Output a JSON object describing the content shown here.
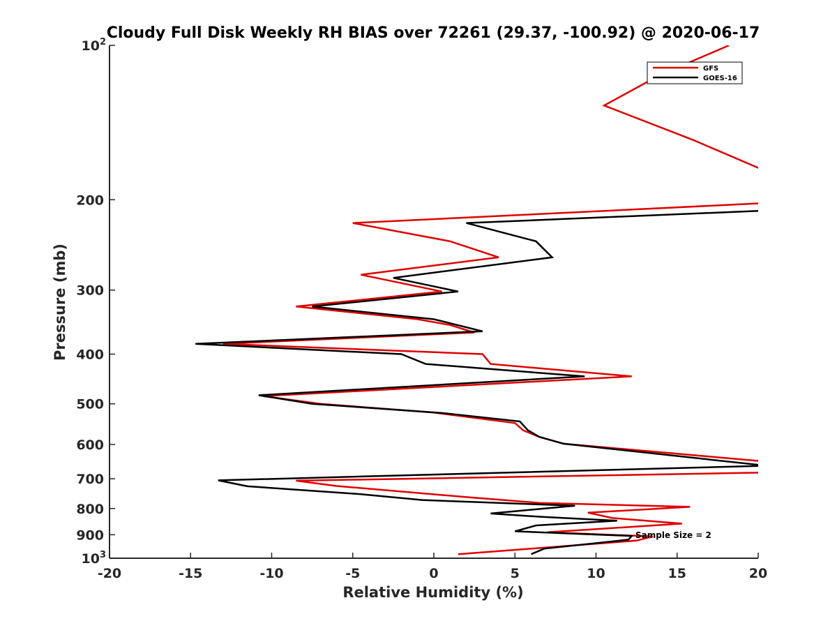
{
  "chart_data": {
    "type": "line",
    "title": "Cloudy Full Disk Weekly RH BIAS over 72261 (29.37, -100.92) @ 2020-06-17",
    "xlabel": "Relative Humidity (%)",
    "ylabel": "Pressure (mb)",
    "xlim": [
      -20,
      20
    ],
    "ylim": [
      100,
      1000
    ],
    "y_scale": "log",
    "y_reversed": true,
    "grid": false,
    "legend_position": "top-right",
    "x_ticks": [
      {
        "value": -20,
        "label": "-20"
      },
      {
        "value": -15,
        "label": "-15"
      },
      {
        "value": -10,
        "label": "-10"
      },
      {
        "value": -5,
        "label": "-5"
      },
      {
        "value": 0,
        "label": "0"
      },
      {
        "value": 5,
        "label": "5"
      },
      {
        "value": 10,
        "label": "10"
      },
      {
        "value": 15,
        "label": "15"
      },
      {
        "value": 20,
        "label": "20"
      }
    ],
    "y_ticks": [
      {
        "value": 100,
        "base": "10",
        "exp": "2"
      },
      {
        "value": 200,
        "base": "200",
        "exp": ""
      },
      {
        "value": 300,
        "base": "300",
        "exp": ""
      },
      {
        "value": 400,
        "base": "400",
        "exp": ""
      },
      {
        "value": 500,
        "base": "500",
        "exp": ""
      },
      {
        "value": 600,
        "base": "600",
        "exp": ""
      },
      {
        "value": 700,
        "base": "700",
        "exp": ""
      },
      {
        "value": 800,
        "base": "800",
        "exp": ""
      },
      {
        "value": 900,
        "base": "900",
        "exp": ""
      },
      {
        "value": 1000,
        "base": "10",
        "exp": "3"
      }
    ],
    "series": [
      {
        "name": "GFS",
        "color": "#e00000",
        "points": [
          [
            18.2,
            100
          ],
          [
            14.0,
            114
          ],
          [
            10.5,
            131
          ],
          [
            16.0,
            153
          ],
          [
            20.5,
            176
          ],
          [
            20.5,
            203
          ],
          [
            -5.0,
            222
          ],
          [
            1.0,
            241
          ],
          [
            4.0,
            259
          ],
          [
            -4.5,
            280
          ],
          [
            0.5,
            302
          ],
          [
            -8.5,
            323
          ],
          [
            -1.0,
            342
          ],
          [
            1.0,
            351
          ],
          [
            2.5,
            363
          ],
          [
            -13.0,
            382
          ],
          [
            3.0,
            400
          ],
          [
            3.5,
            418
          ],
          [
            12.2,
            442
          ],
          [
            -10.5,
            483
          ],
          [
            -7.0,
            500
          ],
          [
            0.0,
            520
          ],
          [
            5.0,
            545
          ],
          [
            5.5,
            563
          ],
          [
            6.5,
            580
          ],
          [
            8.0,
            598
          ],
          [
            20.5,
            648
          ],
          [
            20.0,
            681
          ],
          [
            -8.5,
            706
          ],
          [
            -6.0,
            723
          ],
          [
            2.0,
            760
          ],
          [
            6.5,
            780
          ],
          [
            15.8,
            794
          ],
          [
            9.5,
            815
          ],
          [
            11.0,
            835
          ],
          [
            15.3,
            856
          ],
          [
            7.0,
            890
          ],
          [
            13.5,
            907
          ],
          [
            12.5,
            924
          ],
          [
            1.5,
            982
          ]
        ]
      },
      {
        "name": "GOES-16",
        "color": "#000000",
        "points": [
          [
            20.5,
            210
          ],
          [
            2.0,
            222
          ],
          [
            6.3,
            241
          ],
          [
            7.3,
            259
          ],
          [
            -2.5,
            284
          ],
          [
            1.5,
            302
          ],
          [
            -7.5,
            323
          ],
          [
            0.0,
            342
          ],
          [
            3.0,
            361
          ],
          [
            -14.7,
            382
          ],
          [
            -2.0,
            400
          ],
          [
            -0.5,
            418
          ],
          [
            9.3,
            442
          ],
          [
            -10.8,
            481
          ],
          [
            -7.5,
            500
          ],
          [
            0.5,
            521
          ],
          [
            5.3,
            541
          ],
          [
            5.8,
            563
          ],
          [
            6.5,
            580
          ],
          [
            8.0,
            598
          ],
          [
            20.5,
            660
          ],
          [
            -13.3,
            705
          ],
          [
            -11.5,
            724
          ],
          [
            -4.5,
            750
          ],
          [
            -0.7,
            770
          ],
          [
            8.7,
            790
          ],
          [
            3.5,
            818
          ],
          [
            6.5,
            830
          ],
          [
            11.3,
            845
          ],
          [
            6.3,
            863
          ],
          [
            5.0,
            886
          ],
          [
            12.2,
            905
          ],
          [
            12.0,
            920
          ],
          [
            6.8,
            958
          ],
          [
            6.0,
            982
          ]
        ]
      }
    ],
    "annotation": "Sample Size = 2"
  }
}
